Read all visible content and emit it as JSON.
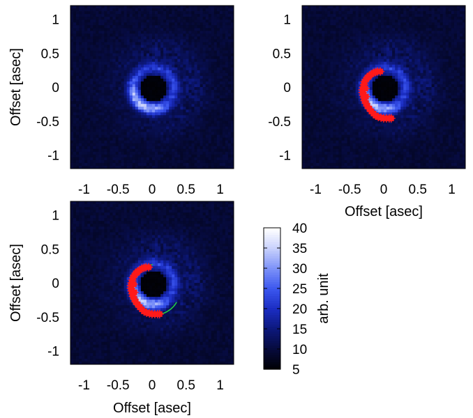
{
  "chart_data": [
    {
      "type": "heatmap",
      "panel": "top-left",
      "xlabel": "",
      "ylabel": "Offset [asec]",
      "xlim": [
        -1.2,
        1.2
      ],
      "ylim": [
        -1.2,
        1.2
      ],
      "xticks": [
        "-1",
        "-0.5",
        "0",
        "0.5",
        "1"
      ],
      "yticks": [
        "1",
        "0.5",
        "0",
        "-0.5",
        "-1"
      ],
      "xtick_values": [
        -1,
        -0.5,
        0,
        0.5,
        1
      ],
      "ytick_values": [
        1,
        0.5,
        0,
        -0.5,
        -1
      ],
      "overlays": []
    },
    {
      "type": "heatmap",
      "panel": "top-right",
      "xlabel": "Offset [asec]",
      "ylabel": "",
      "xlim": [
        -1.2,
        1.2
      ],
      "ylim": [
        -1.2,
        1.2
      ],
      "xticks": [
        "-1",
        "-0.5",
        "0",
        "0.5",
        "1"
      ],
      "yticks": [
        "1",
        "0.5",
        "0",
        "-0.5",
        "-1"
      ],
      "xtick_values": [
        -1,
        -0.5,
        0,
        0.5,
        1
      ],
      "ytick_values": [
        1,
        0.5,
        0,
        -0.5,
        -1
      ],
      "overlays": [
        "red-points"
      ]
    },
    {
      "type": "heatmap",
      "panel": "bottom-left",
      "xlabel": "Offset [asec]",
      "ylabel": "Offset [asec]",
      "xlim": [
        -1.2,
        1.2
      ],
      "ylim": [
        -1.2,
        1.2
      ],
      "xticks": [
        "-1",
        "-0.5",
        "0",
        "0.5",
        "1"
      ],
      "yticks": [
        "1",
        "0.5",
        "0",
        "-0.5",
        "-1"
      ],
      "xtick_values": [
        -1,
        -0.5,
        0,
        0.5,
        1
      ],
      "ytick_values": [
        1,
        0.5,
        0,
        -0.5,
        -1
      ],
      "overlays": [
        "red-points",
        "green-fit"
      ]
    }
  ],
  "red_points": {
    "color": "#ff1a1a",
    "points": [
      [
        -0.05,
        0.23
      ],
      [
        -0.09,
        0.23
      ],
      [
        -0.12,
        0.22
      ],
      [
        -0.15,
        0.21
      ],
      [
        -0.18,
        0.19
      ],
      [
        -0.21,
        0.17
      ],
      [
        -0.24,
        0.14
      ],
      [
        -0.26,
        0.11
      ],
      [
        -0.28,
        0.08
      ],
      [
        -0.29,
        0.04
      ],
      [
        -0.3,
        0.0
      ],
      [
        -0.31,
        -0.04
      ],
      [
        -0.31,
        -0.08
      ],
      [
        -0.3,
        -0.12
      ],
      [
        -0.29,
        -0.16
      ],
      [
        -0.28,
        -0.2
      ],
      [
        -0.26,
        -0.24
      ],
      [
        -0.24,
        -0.28
      ],
      [
        -0.21,
        -0.32
      ],
      [
        -0.18,
        -0.36
      ],
      [
        -0.15,
        -0.39
      ],
      [
        -0.12,
        -0.42
      ],
      [
        -0.08,
        -0.44
      ],
      [
        -0.04,
        -0.45
      ],
      [
        0.0,
        -0.46
      ],
      [
        0.04,
        -0.46
      ],
      [
        0.08,
        -0.46
      ],
      [
        0.11,
        -0.46
      ],
      [
        -0.27,
        -0.02
      ],
      [
        -0.26,
        -0.14
      ],
      [
        -0.22,
        0.15
      ]
    ]
  },
  "green_fit": {
    "color": "#22cc44",
    "center": [
      0.04,
      -0.1
    ],
    "radius": 0.37,
    "theta_start_deg": 95,
    "theta_end_deg": 330
  },
  "colorbar": {
    "label": "arb. unit",
    "min": 5,
    "max": 40,
    "ticks": [
      "5",
      "10",
      "15",
      "20",
      "25",
      "30",
      "35",
      "40"
    ],
    "tick_values": [
      5,
      10,
      15,
      20,
      25,
      30,
      35,
      40
    ],
    "colors": [
      "#000000",
      "#060a3a",
      "#0c1778",
      "#1a2cc0",
      "#3a55ee",
      "#7a90f8",
      "#c6cffc",
      "#ffffff"
    ]
  }
}
